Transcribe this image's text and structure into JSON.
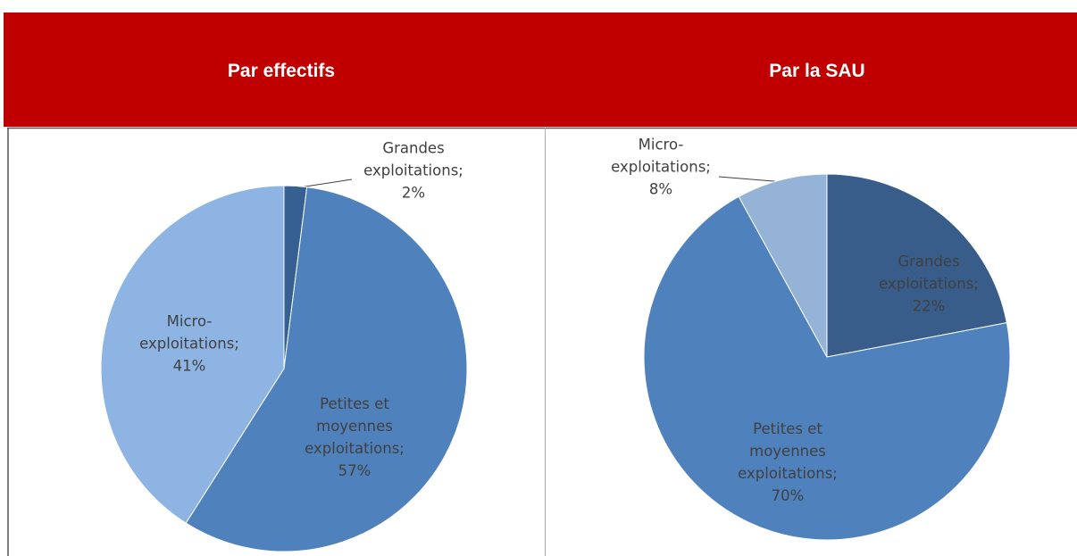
{
  "chart_data": [
    {
      "type": "pie",
      "title": "Par effectifs",
      "labels": [
        "Grandes exploitations;",
        "Petites et moyennes exploitations;",
        "Micro-exploitations;"
      ],
      "values": [
        2,
        57,
        41
      ],
      "value_labels": [
        "2%",
        "57%",
        "41%"
      ],
      "colors": [
        "#376092",
        "#4f81bd",
        "#8eb4e3"
      ]
    },
    {
      "type": "pie",
      "title": "Par la SAU",
      "labels": [
        "Grandes exploitations;",
        "Petites et moyennes exploitations;",
        "Micro-exploitations;"
      ],
      "values": [
        22,
        70,
        8
      ],
      "value_labels": [
        "22%",
        "70%",
        "8%"
      ],
      "colors": [
        "#385d8a",
        "#4f81bd",
        "#95b3d7"
      ]
    }
  ]
}
